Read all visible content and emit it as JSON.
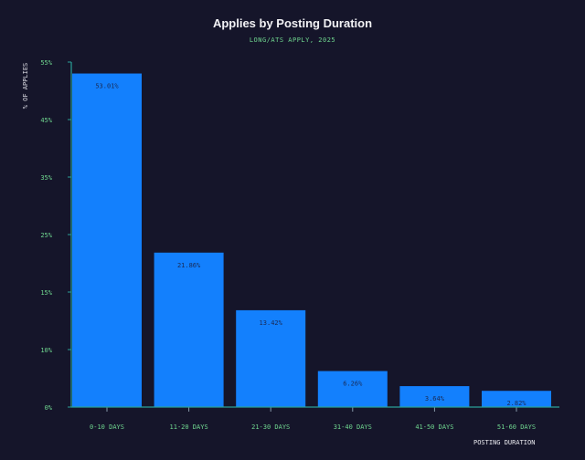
{
  "chart_data": {
    "type": "bar",
    "title": "Applies by Posting Duration",
    "subtitle": "LONG/ATS APPLY, 2025",
    "xlabel": "POSTING DURATION",
    "ylabel": "% OF APPLIES",
    "categories": [
      "0-10 DAYS",
      "11-20 DAYS",
      "21-30 DAYS",
      "31-40 DAYS",
      "41-50 DAYS",
      "51-60 DAYS"
    ],
    "values": [
      53.01,
      21.86,
      13.42,
      6.26,
      3.64,
      2.82
    ],
    "data_labels": [
      "53.01%",
      "21.86%",
      "13.42%",
      "6.26%",
      "3.64%",
      "2.82%"
    ],
    "yticks": [
      0,
      10,
      15,
      25,
      35,
      45,
      55
    ],
    "ytick_labels": [
      "0%",
      "10%",
      "15%",
      "25%",
      "35%",
      "45%",
      "55%"
    ],
    "ylim": [
      0,
      55
    ],
    "grid": false,
    "colors": {
      "bar": "#1380fd",
      "axis": "#2aa198",
      "tick_label": "#6fd68f",
      "background": "#15152a"
    }
  }
}
